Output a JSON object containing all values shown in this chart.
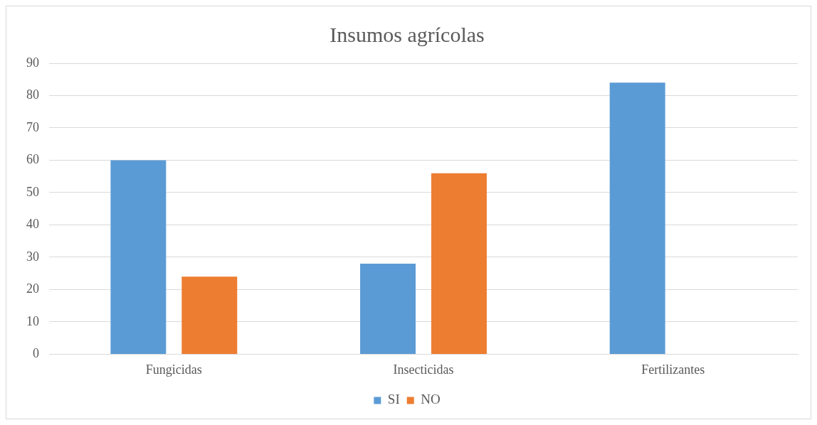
{
  "chart_data": {
    "type": "bar",
    "title": "Insumos agrícolas",
    "categories": [
      "Fungicidas",
      "Insecticidas",
      "Fertilizantes"
    ],
    "series": [
      {
        "name": "SI",
        "color": "#5b9bd5",
        "values": [
          60,
          28,
          84
        ]
      },
      {
        "name": "NO",
        "color": "#ed7d31",
        "values": [
          24,
          56,
          0
        ]
      }
    ],
    "ylim": [
      0,
      90
    ],
    "yticks": [
      0,
      10,
      20,
      30,
      40,
      50,
      60,
      70,
      80,
      90
    ],
    "grid": "y",
    "legend": "bottom"
  }
}
